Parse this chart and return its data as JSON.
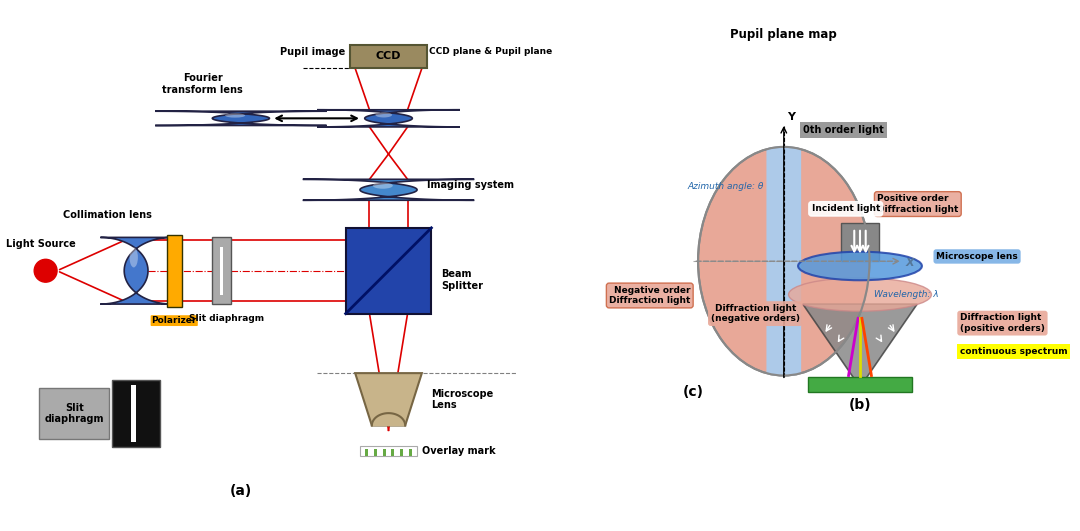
{
  "bg_color": "#ffffff",
  "fig_width": 10.8,
  "fig_height": 5.31,
  "label_a": "(a)",
  "label_b": "(b)",
  "label_c": "(c)",
  "text_pupil_plane_map": "Pupil plane map",
  "text_pupil_image": "Pupil image",
  "text_ccd": "CCD",
  "text_ccd_plane": "CCD plane & Pupil plane",
  "text_fourier": "Fourier\ntransform lens",
  "text_imaging": "Imaging system",
  "text_collimation": "Collimation lens",
  "text_light_source": "Light Source",
  "text_polarizer": "Polarizer",
  "text_slit_diaphragm": "Slit diaphragm",
  "text_beam_splitter": "Beam\nSplitter",
  "text_microscope_lens": "Microscope\nLens",
  "text_overlay_mark": "Overlay mark",
  "text_slit_diaphragm2": "Slit\ndiaphragm",
  "text_0th_order": "0th order light",
  "text_positive_order": "Positive order\nDiffraction light",
  "text_negative_order": "Negative order\nDiffraction light",
  "text_azimuth": "Azimuth angle: θ",
  "text_wavelength": "Wavelength: λ",
  "text_incident": "Incident light",
  "text_microscope_lens2": "Microscope lens",
  "text_diffraction_neg": "Diffraction light\n(negative orders)",
  "text_diffraction_pos": "Diffraction light\n(positive orders)",
  "text_continuous": "continuous spectrum",
  "color_yellow": "#ffaa00",
  "color_red": "#dd0000",
  "color_yellow_hl": "#ffff00"
}
